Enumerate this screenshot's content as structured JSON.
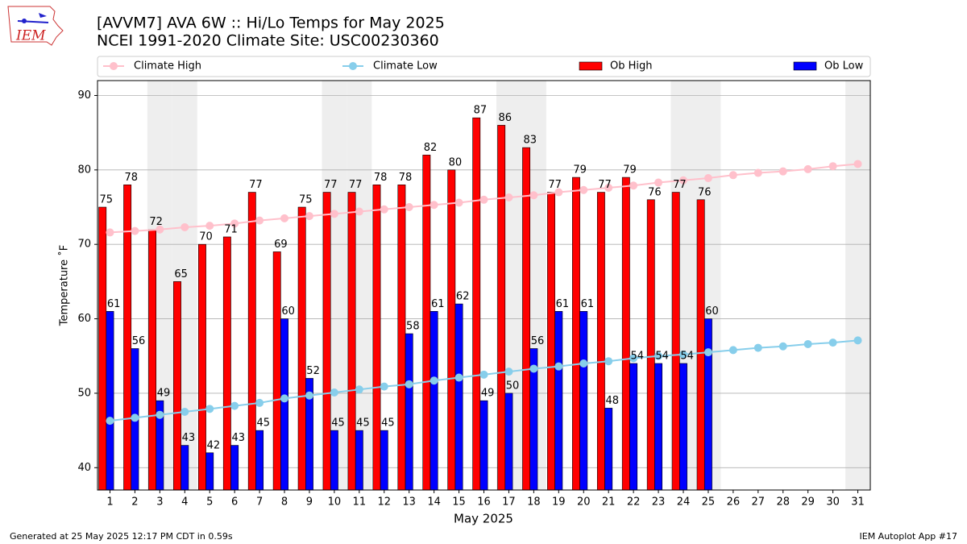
{
  "chart_data": {
    "type": "bar",
    "title": "[AVVM7] AVA 6W :: Hi/Lo Temps for May 2025",
    "subtitle": "NCEI 1991-2020 Climate Site: USC00230360",
    "x_label": "May 2025",
    "y_label": "Temperature ˚F",
    "logo_text": "IEM",
    "footer_left": "Generated at 25 May 2025 12:17 PM CDT in 0.59s",
    "footer_right": "IEM Autoplot App #17",
    "x": [
      1,
      2,
      3,
      4,
      5,
      6,
      7,
      8,
      9,
      10,
      11,
      12,
      13,
      14,
      15,
      16,
      17,
      18,
      19,
      20,
      21,
      22,
      23,
      24,
      25,
      26,
      27,
      28,
      29,
      30,
      31
    ],
    "xlim": [
      0.5,
      31.5
    ],
    "xticks": [
      1,
      2,
      3,
      4,
      5,
      6,
      7,
      8,
      9,
      10,
      11,
      12,
      13,
      14,
      15,
      16,
      17,
      18,
      19,
      20,
      21,
      22,
      23,
      24,
      25,
      26,
      27,
      28,
      29,
      30,
      31
    ],
    "ylim": [
      37,
      92
    ],
    "yticks": [
      40,
      50,
      60,
      70,
      80,
      90
    ],
    "grid": true,
    "shaded_days": [
      3,
      4,
      10,
      11,
      17,
      18,
      24,
      25,
      31
    ],
    "shade_color": "#eeeeee",
    "series": [
      {
        "name": "Climate High",
        "type": "line",
        "color": "pink",
        "values": [
          71.6,
          71.8,
          72.0,
          72.3,
          72.5,
          72.8,
          73.2,
          73.5,
          73.8,
          74.1,
          74.4,
          74.7,
          75.0,
          75.3,
          75.6,
          76.0,
          76.3,
          76.6,
          77.0,
          77.3,
          77.6,
          77.9,
          78.3,
          78.6,
          78.9,
          79.3,
          79.6,
          79.8,
          80.1,
          80.5,
          80.8
        ]
      },
      {
        "name": "Climate Low",
        "type": "line",
        "color": "skyblue",
        "values": [
          46.3,
          46.7,
          47.1,
          47.5,
          47.9,
          48.3,
          48.7,
          49.3,
          49.7,
          50.1,
          50.5,
          50.9,
          51.2,
          51.7,
          52.1,
          52.5,
          52.9,
          53.3,
          53.6,
          54.0,
          54.3,
          54.7,
          55.0,
          55.2,
          55.5,
          55.8,
          56.1,
          56.3,
          56.6,
          56.8,
          57.1
        ]
      },
      {
        "name": "Ob High",
        "type": "bar",
        "color": "#ff0000",
        "values": [
          75,
          78,
          72,
          65,
          70,
          71,
          77,
          69,
          75,
          77,
          77,
          78,
          78,
          82,
          80,
          87,
          86,
          83,
          77,
          79,
          77,
          79,
          76,
          77,
          76,
          null,
          null,
          null,
          null,
          null,
          null
        ]
      },
      {
        "name": "Ob Low",
        "type": "bar",
        "color": "#0000ff",
        "values": [
          61,
          56,
          49,
          43,
          42,
          43,
          45,
          60,
          52,
          45,
          45,
          45,
          58,
          61,
          62,
          49,
          50,
          56,
          61,
          61,
          48,
          54,
          54,
          54,
          60,
          null,
          null,
          null,
          null,
          null,
          null
        ]
      }
    ]
  }
}
